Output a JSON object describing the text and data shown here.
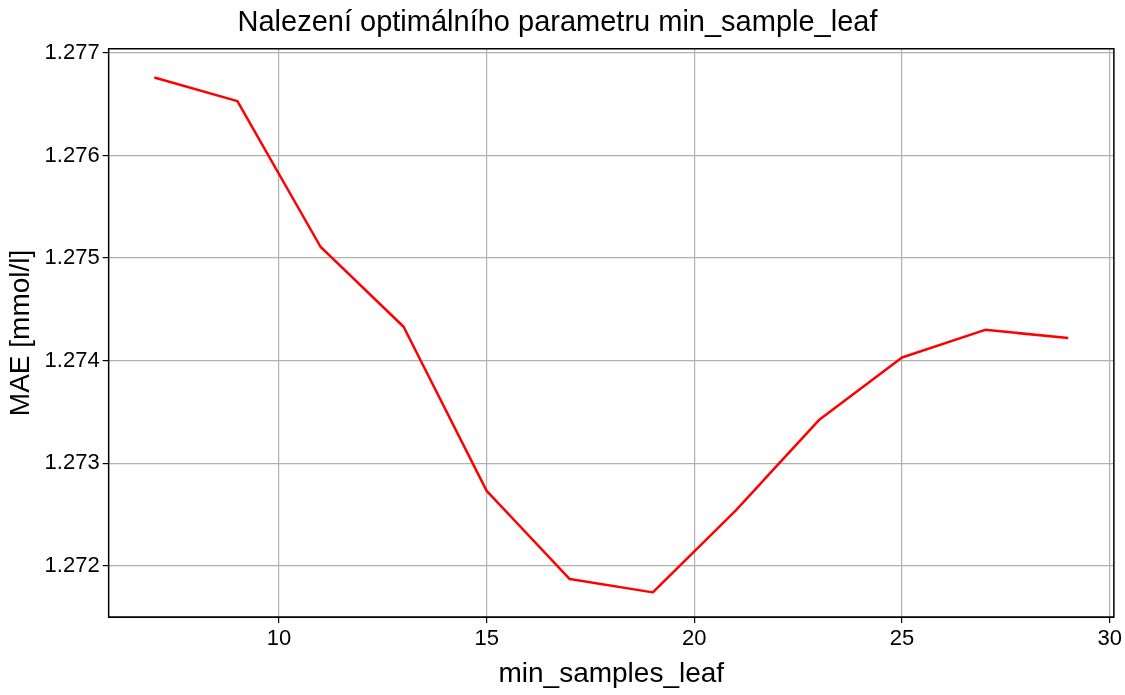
{
  "chart_data": {
    "type": "line",
    "title": "Nalezení optimálního parametru min_sample_leaf",
    "xlabel": "min_samples_leaf",
    "ylabel": "MAE [mmol/l]",
    "x": [
      7,
      9,
      11,
      13,
      15,
      17,
      19,
      21,
      23,
      25,
      27,
      29
    ],
    "series": [
      {
        "color": "#ff0000",
        "values": [
          1.27676,
          1.27653,
          1.27511,
          1.27433,
          1.27273,
          1.27187,
          1.27174,
          1.27254,
          1.27342,
          1.27403,
          1.2743,
          1.27422
        ]
      }
    ],
    "xlim": [
      5.9,
      30.1
    ],
    "xticks": [
      10,
      15,
      20,
      25,
      30
    ],
    "ylim": [
      1.2715,
      1.27704
    ],
    "yticks": [
      1.272,
      1.273,
      1.274,
      1.275,
      1.276,
      1.277
    ],
    "grid": true,
    "marker": "none",
    "line_style": "solid",
    "legend": false
  }
}
